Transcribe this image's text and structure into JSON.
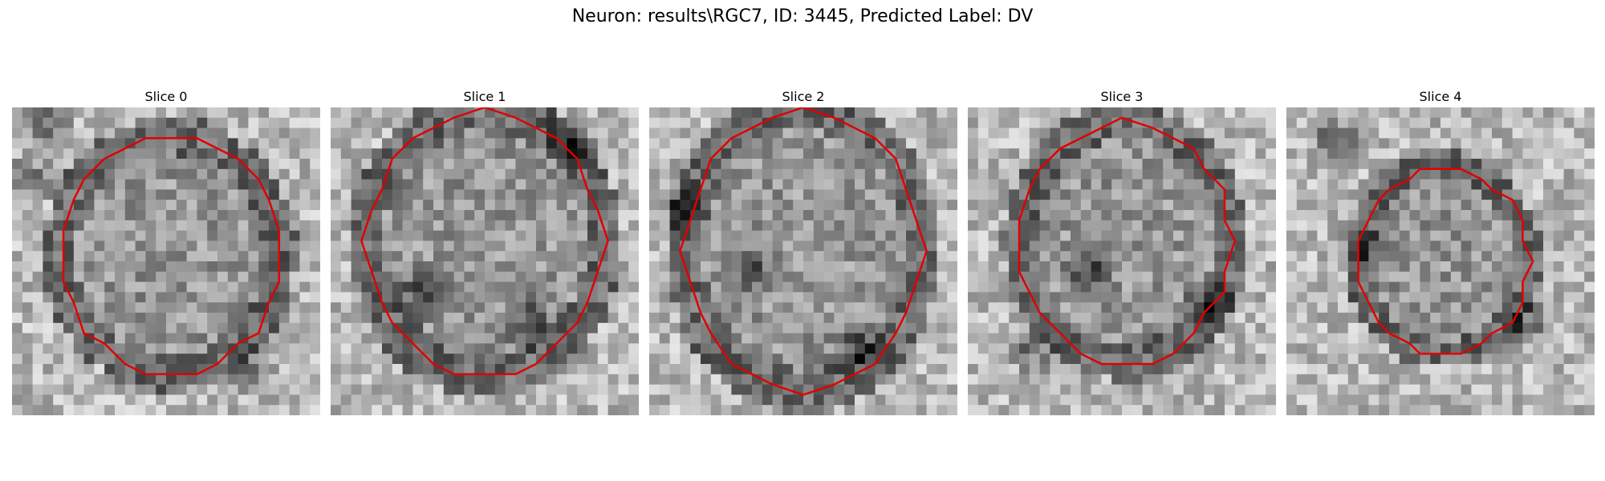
{
  "figure": {
    "suptitle": "Neuron: results\\RGC7, ID: 3445, Predicted Label: DV",
    "contour_color": "#e00000",
    "panels": [
      {
        "title": "Slice 0"
      },
      {
        "title": "Slice 1"
      },
      {
        "title": "Slice 2"
      },
      {
        "title": "Slice 3"
      },
      {
        "title": "Slice 4"
      }
    ]
  }
}
